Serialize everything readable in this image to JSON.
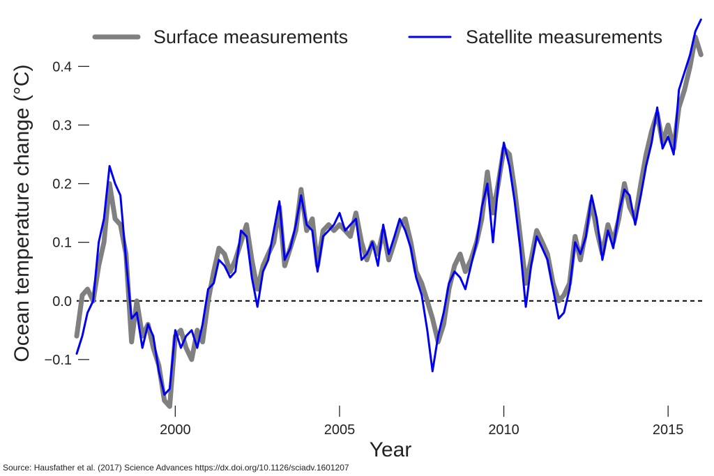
{
  "chart_data": {
    "type": "line",
    "xlabel": "Year",
    "ylabel": "Ocean temperature change ($^\\circ$C)",
    "ylabel_prefix": "Ocean temperature change (",
    "ylabel_unit": "°C",
    "ylabel_suffix": ")",
    "xlim": [
      1997.0,
      2016.1
    ],
    "ylim": [
      -0.2,
      0.48
    ],
    "xticks": [
      2000,
      2005,
      2010,
      2015
    ],
    "xtick_labels": [
      "2000",
      "2005",
      "2010",
      "2015"
    ],
    "yticks": [
      -0.1,
      0.0,
      0.1,
      0.2,
      0.3,
      0.4
    ],
    "ytick_labels": [
      "−0.1",
      "0.0",
      "0.1",
      "0.2",
      "0.3",
      "0.4"
    ],
    "reference_line": {
      "y": 0.0,
      "style": "dashed",
      "color": "#000000"
    },
    "grid": false,
    "legend": "top",
    "series": [
      {
        "name": "Surface measurements",
        "color": "#808080",
        "points": [
          [
            1997.0,
            -0.06
          ],
          [
            1997.17,
            0.01
          ],
          [
            1997.33,
            0.02
          ],
          [
            1997.5,
            0.0
          ],
          [
            1997.67,
            0.06
          ],
          [
            1997.83,
            0.1
          ],
          [
            1998.0,
            0.2
          ],
          [
            1998.17,
            0.14
          ],
          [
            1998.33,
            0.13
          ],
          [
            1998.5,
            0.08
          ],
          [
            1998.67,
            -0.07
          ],
          [
            1998.83,
            0.0
          ],
          [
            1999.0,
            -0.06
          ],
          [
            1999.17,
            -0.04
          ],
          [
            1999.33,
            -0.08
          ],
          [
            1999.5,
            -0.11
          ],
          [
            1999.67,
            -0.17
          ],
          [
            1999.83,
            -0.18
          ],
          [
            2000.0,
            -0.06
          ],
          [
            2000.17,
            -0.05
          ],
          [
            2000.33,
            -0.08
          ],
          [
            2000.5,
            -0.1
          ],
          [
            2000.67,
            -0.05
          ],
          [
            2000.83,
            -0.07
          ],
          [
            2001.0,
            0.0
          ],
          [
            2001.17,
            0.05
          ],
          [
            2001.33,
            0.09
          ],
          [
            2001.5,
            0.08
          ],
          [
            2001.67,
            0.05
          ],
          [
            2001.83,
            0.07
          ],
          [
            2002.0,
            0.1
          ],
          [
            2002.17,
            0.13
          ],
          [
            2002.33,
            0.07
          ],
          [
            2002.5,
            0.02
          ],
          [
            2002.67,
            0.06
          ],
          [
            2002.83,
            0.08
          ],
          [
            2003.0,
            0.1
          ],
          [
            2003.17,
            0.16
          ],
          [
            2003.33,
            0.06
          ],
          [
            2003.5,
            0.09
          ],
          [
            2003.67,
            0.12
          ],
          [
            2003.83,
            0.19
          ],
          [
            2004.0,
            0.12
          ],
          [
            2004.17,
            0.14
          ],
          [
            2004.33,
            0.06
          ],
          [
            2004.5,
            0.12
          ],
          [
            2004.67,
            0.13
          ],
          [
            2004.83,
            0.12
          ],
          [
            2005.0,
            0.13
          ],
          [
            2005.17,
            0.12
          ],
          [
            2005.33,
            0.11
          ],
          [
            2005.5,
            0.15
          ],
          [
            2005.67,
            0.1
          ],
          [
            2005.83,
            0.07
          ],
          [
            2006.0,
            0.1
          ],
          [
            2006.17,
            0.08
          ],
          [
            2006.33,
            0.12
          ],
          [
            2006.5,
            0.07
          ],
          [
            2006.67,
            0.1
          ],
          [
            2006.83,
            0.13
          ],
          [
            2007.0,
            0.14
          ],
          [
            2007.17,
            0.1
          ],
          [
            2007.33,
            0.05
          ],
          [
            2007.5,
            0.03
          ],
          [
            2007.67,
            0.0
          ],
          [
            2007.83,
            -0.03
          ],
          [
            2008.0,
            -0.07
          ],
          [
            2008.17,
            -0.04
          ],
          [
            2008.33,
            0.02
          ],
          [
            2008.5,
            0.06
          ],
          [
            2008.67,
            0.08
          ],
          [
            2008.83,
            0.05
          ],
          [
            2009.0,
            0.07
          ],
          [
            2009.17,
            0.1
          ],
          [
            2009.33,
            0.14
          ],
          [
            2009.5,
            0.22
          ],
          [
            2009.67,
            0.15
          ],
          [
            2009.83,
            0.2
          ],
          [
            2010.0,
            0.26
          ],
          [
            2010.17,
            0.25
          ],
          [
            2010.33,
            0.19
          ],
          [
            2010.5,
            0.11
          ],
          [
            2010.67,
            0.03
          ],
          [
            2010.83,
            0.07
          ],
          [
            2011.0,
            0.12
          ],
          [
            2011.17,
            0.1
          ],
          [
            2011.33,
            0.08
          ],
          [
            2011.5,
            0.03
          ],
          [
            2011.67,
            0.0
          ],
          [
            2011.83,
            0.01
          ],
          [
            2012.0,
            0.03
          ],
          [
            2012.17,
            0.11
          ],
          [
            2012.33,
            0.07
          ],
          [
            2012.5,
            0.12
          ],
          [
            2012.67,
            0.17
          ],
          [
            2012.83,
            0.12
          ],
          [
            2013.0,
            0.08
          ],
          [
            2013.17,
            0.13
          ],
          [
            2013.33,
            0.1
          ],
          [
            2013.5,
            0.14
          ],
          [
            2013.67,
            0.2
          ],
          [
            2013.83,
            0.16
          ],
          [
            2014.0,
            0.14
          ],
          [
            2014.17,
            0.2
          ],
          [
            2014.33,
            0.25
          ],
          [
            2014.5,
            0.29
          ],
          [
            2014.67,
            0.32
          ],
          [
            2014.83,
            0.27
          ],
          [
            2015.0,
            0.3
          ],
          [
            2015.17,
            0.26
          ],
          [
            2015.33,
            0.33
          ],
          [
            2015.5,
            0.36
          ],
          [
            2015.67,
            0.4
          ],
          [
            2015.83,
            0.45
          ],
          [
            2016.0,
            0.42
          ]
        ]
      },
      {
        "name": "Satellite measurements",
        "color": "#0000ee",
        "points": [
          [
            1997.0,
            -0.09
          ],
          [
            1997.17,
            -0.06
          ],
          [
            1997.33,
            -0.02
          ],
          [
            1997.5,
            0.0
          ],
          [
            1997.67,
            0.1
          ],
          [
            1997.83,
            0.14
          ],
          [
            1998.0,
            0.23
          ],
          [
            1998.17,
            0.2
          ],
          [
            1998.33,
            0.18
          ],
          [
            1998.5,
            0.07
          ],
          [
            1998.67,
            -0.03
          ],
          [
            1998.83,
            -0.02
          ],
          [
            1999.0,
            -0.08
          ],
          [
            1999.17,
            -0.04
          ],
          [
            1999.33,
            -0.06
          ],
          [
            1999.5,
            -0.12
          ],
          [
            1999.67,
            -0.16
          ],
          [
            1999.83,
            -0.15
          ],
          [
            2000.0,
            -0.05
          ],
          [
            2000.17,
            -0.08
          ],
          [
            2000.33,
            -0.06
          ],
          [
            2000.5,
            -0.05
          ],
          [
            2000.67,
            -0.08
          ],
          [
            2000.83,
            -0.04
          ],
          [
            2001.0,
            0.02
          ],
          [
            2001.17,
            0.03
          ],
          [
            2001.33,
            0.07
          ],
          [
            2001.5,
            0.06
          ],
          [
            2001.67,
            0.04
          ],
          [
            2001.83,
            0.05
          ],
          [
            2002.0,
            0.12
          ],
          [
            2002.17,
            0.11
          ],
          [
            2002.33,
            0.04
          ],
          [
            2002.5,
            -0.01
          ],
          [
            2002.67,
            0.05
          ],
          [
            2002.83,
            0.07
          ],
          [
            2003.0,
            0.12
          ],
          [
            2003.17,
            0.17
          ],
          [
            2003.33,
            0.07
          ],
          [
            2003.5,
            0.09
          ],
          [
            2003.67,
            0.13
          ],
          [
            2003.83,
            0.18
          ],
          [
            2004.0,
            0.13
          ],
          [
            2004.17,
            0.12
          ],
          [
            2004.33,
            0.05
          ],
          [
            2004.5,
            0.11
          ],
          [
            2004.67,
            0.12
          ],
          [
            2004.83,
            0.13
          ],
          [
            2005.0,
            0.15
          ],
          [
            2005.17,
            0.12
          ],
          [
            2005.33,
            0.13
          ],
          [
            2005.5,
            0.14
          ],
          [
            2005.67,
            0.07
          ],
          [
            2005.83,
            0.08
          ],
          [
            2006.0,
            0.1
          ],
          [
            2006.17,
            0.06
          ],
          [
            2006.33,
            0.13
          ],
          [
            2006.5,
            0.08
          ],
          [
            2006.67,
            0.11
          ],
          [
            2006.83,
            0.14
          ],
          [
            2007.0,
            0.12
          ],
          [
            2007.17,
            0.09
          ],
          [
            2007.33,
            0.04
          ],
          [
            2007.5,
            0.01
          ],
          [
            2007.67,
            -0.05
          ],
          [
            2007.83,
            -0.12
          ],
          [
            2008.0,
            -0.06
          ],
          [
            2008.17,
            -0.02
          ],
          [
            2008.33,
            0.03
          ],
          [
            2008.5,
            0.05
          ],
          [
            2008.67,
            0.04
          ],
          [
            2008.83,
            0.02
          ],
          [
            2009.0,
            0.06
          ],
          [
            2009.17,
            0.1
          ],
          [
            2009.33,
            0.16
          ],
          [
            2009.5,
            0.2
          ],
          [
            2009.67,
            0.1
          ],
          [
            2009.83,
            0.2
          ],
          [
            2010.0,
            0.27
          ],
          [
            2010.17,
            0.23
          ],
          [
            2010.33,
            0.17
          ],
          [
            2010.5,
            0.09
          ],
          [
            2010.67,
            -0.01
          ],
          [
            2010.83,
            0.06
          ],
          [
            2011.0,
            0.11
          ],
          [
            2011.17,
            0.09
          ],
          [
            2011.33,
            0.07
          ],
          [
            2011.5,
            0.02
          ],
          [
            2011.67,
            -0.03
          ],
          [
            2011.83,
            -0.02
          ],
          [
            2012.0,
            0.02
          ],
          [
            2012.17,
            0.1
          ],
          [
            2012.33,
            0.08
          ],
          [
            2012.5,
            0.11
          ],
          [
            2012.67,
            0.18
          ],
          [
            2012.83,
            0.14
          ],
          [
            2013.0,
            0.07
          ],
          [
            2013.17,
            0.12
          ],
          [
            2013.33,
            0.09
          ],
          [
            2013.5,
            0.15
          ],
          [
            2013.67,
            0.19
          ],
          [
            2013.83,
            0.18
          ],
          [
            2014.0,
            0.13
          ],
          [
            2014.17,
            0.18
          ],
          [
            2014.33,
            0.23
          ],
          [
            2014.5,
            0.27
          ],
          [
            2014.67,
            0.33
          ],
          [
            2014.83,
            0.26
          ],
          [
            2015.0,
            0.28
          ],
          [
            2015.17,
            0.25
          ],
          [
            2015.33,
            0.36
          ],
          [
            2015.5,
            0.39
          ],
          [
            2015.67,
            0.42
          ],
          [
            2015.83,
            0.46
          ],
          [
            2016.0,
            0.48
          ]
        ]
      }
    ]
  },
  "source_note": "Source: Hausfather et al. (2017) Science Advances https://dx.doi.org/10.1126/sciadv.1601207"
}
